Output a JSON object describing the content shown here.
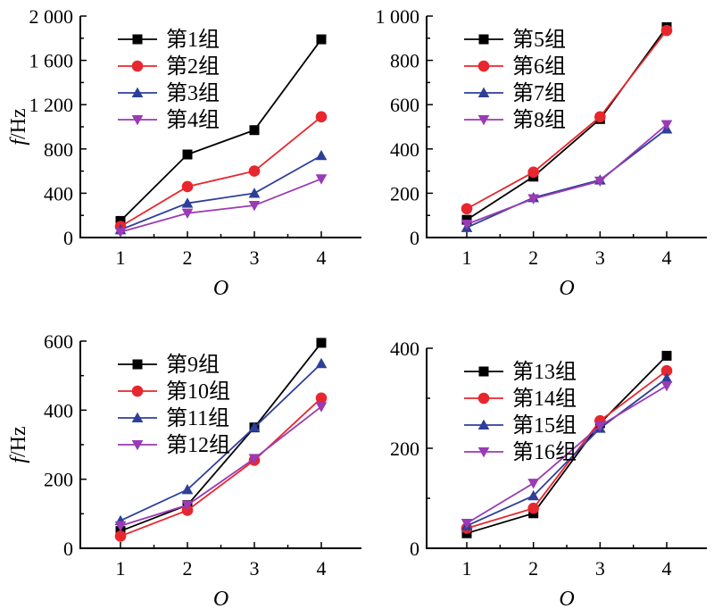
{
  "charts": [
    {
      "type": "line",
      "ylabel_italic": "f",
      "ylabel_rest": "/Hz",
      "xlabel": "O",
      "x": [
        1,
        2,
        3,
        4
      ],
      "xticks": [
        "1",
        "2",
        "3",
        "4"
      ],
      "ylim": [
        0,
        2000
      ],
      "yticks": [
        0,
        400,
        800,
        1200,
        1600,
        2000
      ],
      "yticklabels": [
        "0",
        "400",
        "800",
        "1 200",
        "1 600",
        "2 000"
      ],
      "legend_position": "top-left",
      "series": [
        {
          "name": "第1组",
          "color": "#000000",
          "marker": "square",
          "values": [
            150,
            750,
            970,
            1790
          ]
        },
        {
          "name": "第2组",
          "color": "#e8262d",
          "marker": "circle",
          "values": [
            100,
            460,
            600,
            1090
          ]
        },
        {
          "name": "第3组",
          "color": "#2e3f99",
          "marker": "triangle-up",
          "values": [
            70,
            310,
            400,
            740
          ]
        },
        {
          "name": "第4组",
          "color": "#9a3ab5",
          "marker": "triangle-down",
          "values": [
            50,
            220,
            290,
            530
          ]
        }
      ]
    },
    {
      "type": "line",
      "ylabel_italic": "",
      "ylabel_rest": "",
      "xlabel": "O",
      "x": [
        1,
        2,
        3,
        4
      ],
      "xticks": [
        "1",
        "2",
        "3",
        "4"
      ],
      "ylim": [
        0,
        1000
      ],
      "yticks": [
        0,
        200,
        400,
        600,
        800,
        1000
      ],
      "yticklabels": [
        "0",
        "200",
        "400",
        "600",
        "800",
        "1 000"
      ],
      "legend_position": "top-left",
      "series": [
        {
          "name": "第5组",
          "color": "#000000",
          "marker": "square",
          "values": [
            80,
            275,
            535,
            950
          ]
        },
        {
          "name": "第6组",
          "color": "#e8262d",
          "marker": "circle",
          "values": [
            130,
            295,
            545,
            935
          ]
        },
        {
          "name": "第7组",
          "color": "#2e3f99",
          "marker": "triangle-up",
          "values": [
            45,
            180,
            260,
            490
          ]
        },
        {
          "name": "第8组",
          "color": "#9a3ab5",
          "marker": "triangle-down",
          "values": [
            60,
            175,
            255,
            510
          ]
        }
      ]
    },
    {
      "type": "line",
      "ylabel_italic": "f",
      "ylabel_rest": "/Hz",
      "xlabel": "O",
      "x": [
        1,
        2,
        3,
        4
      ],
      "xticks": [
        "1",
        "2",
        "3",
        "4"
      ],
      "ylim": [
        0,
        600
      ],
      "yticks": [
        0,
        200,
        400,
        600
      ],
      "yticklabels": [
        "0",
        "200",
        "400",
        "600"
      ],
      "legend_position": "top-left",
      "series": [
        {
          "name": "第9组",
          "color": "#000000",
          "marker": "square",
          "values": [
            50,
            125,
            350,
            595
          ]
        },
        {
          "name": "第10组",
          "color": "#e8262d",
          "marker": "circle",
          "values": [
            35,
            110,
            255,
            435
          ]
        },
        {
          "name": "第11组",
          "color": "#2e3f99",
          "marker": "triangle-up",
          "values": [
            80,
            170,
            350,
            535
          ]
        },
        {
          "name": "第12组",
          "color": "#9a3ab5",
          "marker": "triangle-down",
          "values": [
            65,
            125,
            260,
            410
          ]
        }
      ]
    },
    {
      "type": "line",
      "ylabel_italic": "",
      "ylabel_rest": "",
      "xlabel": "O",
      "x": [
        1,
        2,
        3,
        4
      ],
      "xticks": [
        "1",
        "2",
        "3",
        "4"
      ],
      "ylim": [
        0,
        400
      ],
      "yticks": [
        0,
        200,
        400
      ],
      "yticklabels": [
        "0",
        "200",
        "400"
      ],
      "legend_position": "top-left",
      "series": [
        {
          "name": "第13组",
          "color": "#000000",
          "marker": "square",
          "values": [
            30,
            70,
            250,
            385
          ]
        },
        {
          "name": "第14组",
          "color": "#e8262d",
          "marker": "circle",
          "values": [
            40,
            80,
            255,
            355
          ]
        },
        {
          "name": "第15组",
          "color": "#2e3f99",
          "marker": "triangle-up",
          "values": [
            45,
            105,
            240,
            340
          ]
        },
        {
          "name": "第16组",
          "color": "#9a3ab5",
          "marker": "triangle-down",
          "values": [
            50,
            130,
            245,
            325
          ]
        }
      ]
    }
  ]
}
